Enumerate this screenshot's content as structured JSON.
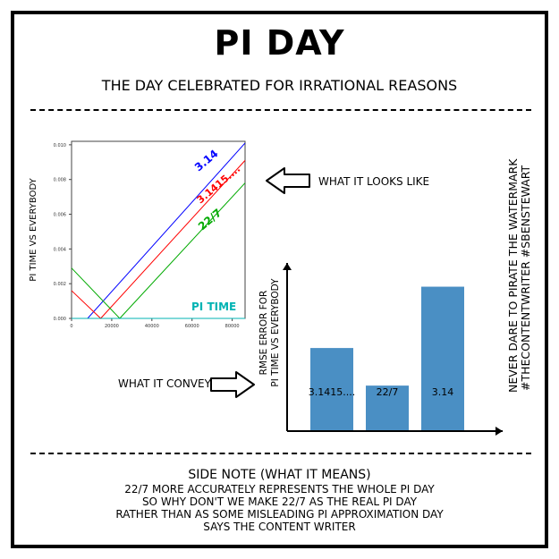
{
  "header": {
    "title": "PI DAY",
    "subtitle": "THE DAY CELEBRATED FOR IRRATIONAL REASONS"
  },
  "annotations": {
    "looks_like": "WHAT IT LOOKS LIKE",
    "conveys": "WHAT IT CONVEYS"
  },
  "watermark": {
    "line1": "NEVER DARE TO PIRATE THE WATERMARK",
    "line2": "#THECONTENTWRITER #SBENSTEWART"
  },
  "side_note": {
    "heading": "SIDE NOTE (WHAT IT MEANS)",
    "lines": [
      "22/7 MORE ACCURATELY REPRESENTS THE WHOLE PI DAY",
      "SO WHY DON'T WE MAKE 22/7 AS THE REAL PI DAY",
      "RATHER THAN AS SOME MISLEADING PI APPROXIMATION DAY",
      "SAYS THE CONTENT WRITER"
    ]
  },
  "chart_data": [
    {
      "type": "line",
      "title": "",
      "xlabel": "",
      "ylabel": "PI TIME VS EVERYBODY",
      "xlim": [
        0,
        86400
      ],
      "ylim": [
        0,
        0.0102
      ],
      "x_ticks": [
        0,
        20000,
        40000,
        60000,
        80000
      ],
      "y_ticks": [
        0.0,
        0.002,
        0.004,
        0.006,
        0.008,
        0.01
      ],
      "y_tick_labels": [
        "0.000",
        "0.002",
        "0.004",
        "0.006",
        "0.008",
        "0.010"
      ],
      "series": [
        {
          "name": "3.14",
          "color": "#0000ff",
          "x": [
            0,
            8000,
            86400
          ],
          "y": [
            0,
            0,
            0.0101
          ]
        },
        {
          "name": "3.1415....",
          "color": "#ff0000",
          "x": [
            0,
            14500,
            86400
          ],
          "y": [
            0.0016,
            0,
            0.0091
          ]
        },
        {
          "name": "22/7",
          "color": "#00aa00",
          "x": [
            0,
            24000,
            86400
          ],
          "y": [
            0.0029,
            0,
            0.0078
          ]
        },
        {
          "name": "PI TIME",
          "color": "#00b3b3",
          "x": [
            0,
            86400
          ],
          "y": [
            0,
            0
          ]
        }
      ]
    },
    {
      "type": "bar",
      "ylabel": "RMSE ERROR FOR PI TIME VS EVERYBODY",
      "categories": [
        "3.1415....",
        "22/7",
        "3.14"
      ],
      "values": [
        0.0042,
        0.0023,
        0.0073
      ],
      "ylim": [
        0,
        0.0085
      ],
      "color": "#4a8fc4"
    }
  ]
}
